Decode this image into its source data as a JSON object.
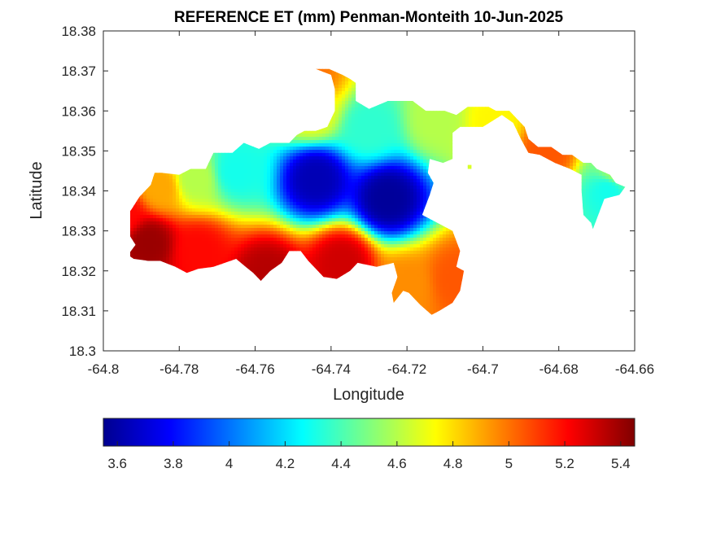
{
  "chart_data": {
    "type": "heatmap",
    "title": "REFERENCE ET (mm) Penman-Monteith 10-Jun-2025",
    "xlabel": "Longitude",
    "ylabel": "Latitude",
    "xlim": [
      -64.8,
      -64.66
    ],
    "ylim": [
      18.3,
      18.38
    ],
    "xticks": [
      -64.8,
      -64.78,
      -64.76,
      -64.74,
      -64.72,
      -64.7,
      -64.68,
      -64.66
    ],
    "yticks": [
      18.3,
      18.31,
      18.32,
      18.33,
      18.34,
      18.35,
      18.36,
      18.37,
      18.38
    ],
    "xtick_labels": [
      "-64.8",
      "-64.78",
      "-64.76",
      "-64.74",
      "-64.72",
      "-64.7",
      "-64.68",
      "-64.66"
    ],
    "ytick_labels": [
      "18.3",
      "18.31",
      "18.32",
      "18.33",
      "18.34",
      "18.35",
      "18.36",
      "18.37",
      "18.38"
    ],
    "colormap": "jet",
    "colorbar": {
      "range": [
        3.55,
        5.45
      ],
      "ticks": [
        3.6,
        3.8,
        4,
        4.2,
        4.4,
        4.6,
        4.8,
        5,
        5.2,
        5.4
      ],
      "tick_labels": [
        "3.6",
        "3.8",
        "4",
        "4.2",
        "4.4",
        "4.6",
        "4.8",
        "5",
        "5.2",
        "5.4"
      ],
      "placement": "bottom"
    },
    "grid": false,
    "field": {
      "description_values": [
        {
          "lon": -64.788,
          "lat": 18.327,
          "value": 5.4
        },
        {
          "lon": -64.775,
          "lat": 18.325,
          "value": 5.2
        },
        {
          "lon": -64.757,
          "lat": 18.319,
          "value": 5.35
        },
        {
          "lon": -64.737,
          "lat": 18.322,
          "value": 5.3
        },
        {
          "lon": -64.744,
          "lat": 18.343,
          "value": 3.65
        },
        {
          "lon": -64.725,
          "lat": 18.338,
          "value": 3.6
        },
        {
          "lon": -64.765,
          "lat": 18.345,
          "value": 4.3
        },
        {
          "lon": -64.72,
          "lat": 18.316,
          "value": 4.95
        },
        {
          "lon": -64.707,
          "lat": 18.318,
          "value": 5.05
        },
        {
          "lon": -64.712,
          "lat": 18.358,
          "value": 4.6
        },
        {
          "lon": -64.73,
          "lat": 18.356,
          "value": 4.35
        },
        {
          "lon": -64.745,
          "lat": 18.368,
          "value": 5.0
        },
        {
          "lon": -64.745,
          "lat": 18.36,
          "value": 4.7
        },
        {
          "lon": -64.683,
          "lat": 18.35,
          "value": 5.05
        },
        {
          "lon": -64.667,
          "lat": 18.34,
          "value": 4.3
        },
        {
          "lon": -64.665,
          "lat": 18.345,
          "value": 4.55
        },
        {
          "lon": -64.697,
          "lat": 18.357,
          "value": 4.75
        },
        {
          "lon": -64.795,
          "lat": 18.334,
          "value": 5.2
        },
        {
          "lon": -64.785,
          "lat": 18.341,
          "value": 4.9
        },
        {
          "lon": -64.776,
          "lat": 18.343,
          "value": 4.6
        }
      ]
    }
  }
}
